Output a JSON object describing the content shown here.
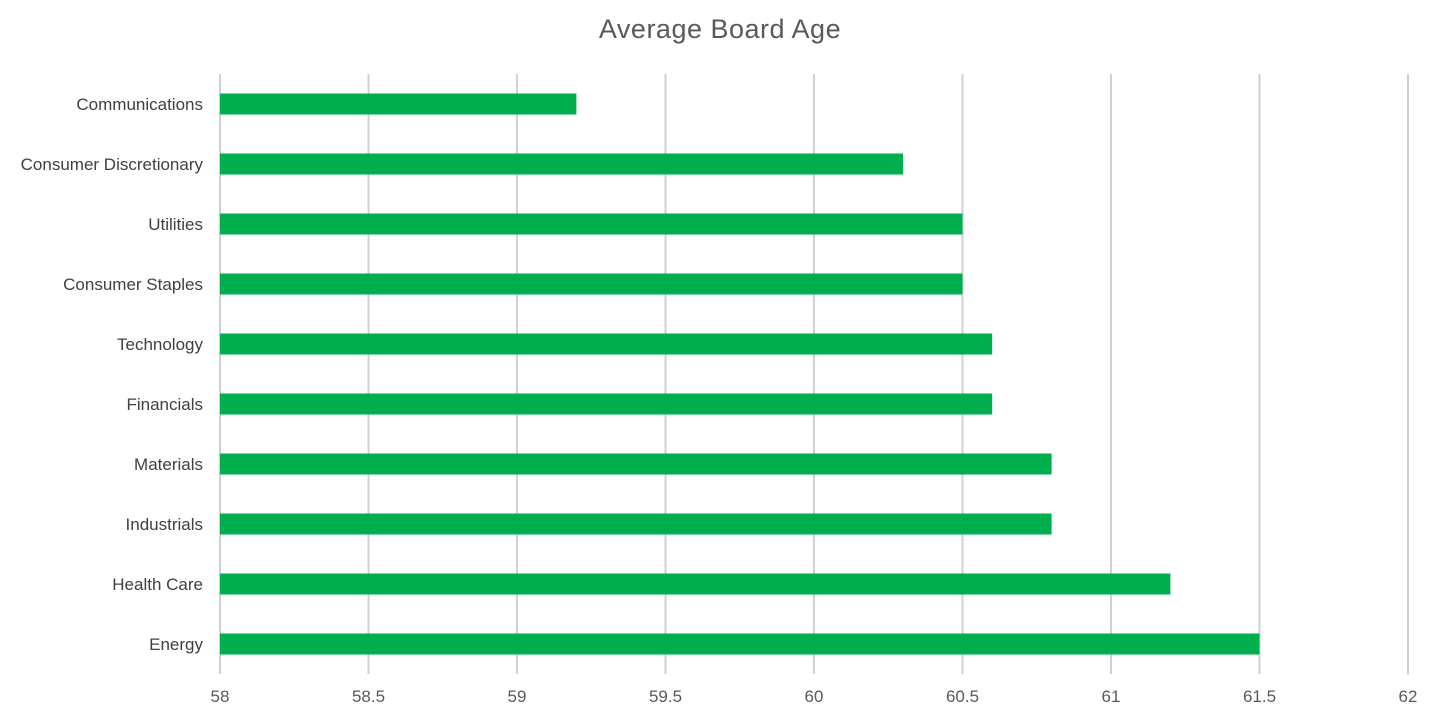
{
  "chart_data": {
    "type": "bar",
    "orientation": "horizontal",
    "title": "Average Board Age",
    "xlabel": "",
    "ylabel": "",
    "categories": [
      "Communications",
      "Consumer Discretionary",
      "Utilities",
      "Consumer Staples",
      "Technology",
      "Financials",
      "Materials",
      "Industrials",
      "Health Care",
      "Energy"
    ],
    "values": [
      59.2,
      60.3,
      60.5,
      60.5,
      60.6,
      60.6,
      60.8,
      60.8,
      61.2,
      61.5
    ],
    "xlim": [
      58,
      62
    ],
    "xticks": [
      58,
      58.5,
      59,
      59.5,
      60,
      60.5,
      61,
      61.5,
      62
    ],
    "xtick_labels": [
      "58",
      "58.5",
      "59",
      "59.5",
      "60",
      "60.5",
      "61",
      "61.5",
      "62"
    ],
    "grid": "vertical",
    "legend": "none",
    "bar_color": "#00ae4d",
    "grid_color": "#d0d0d0"
  }
}
